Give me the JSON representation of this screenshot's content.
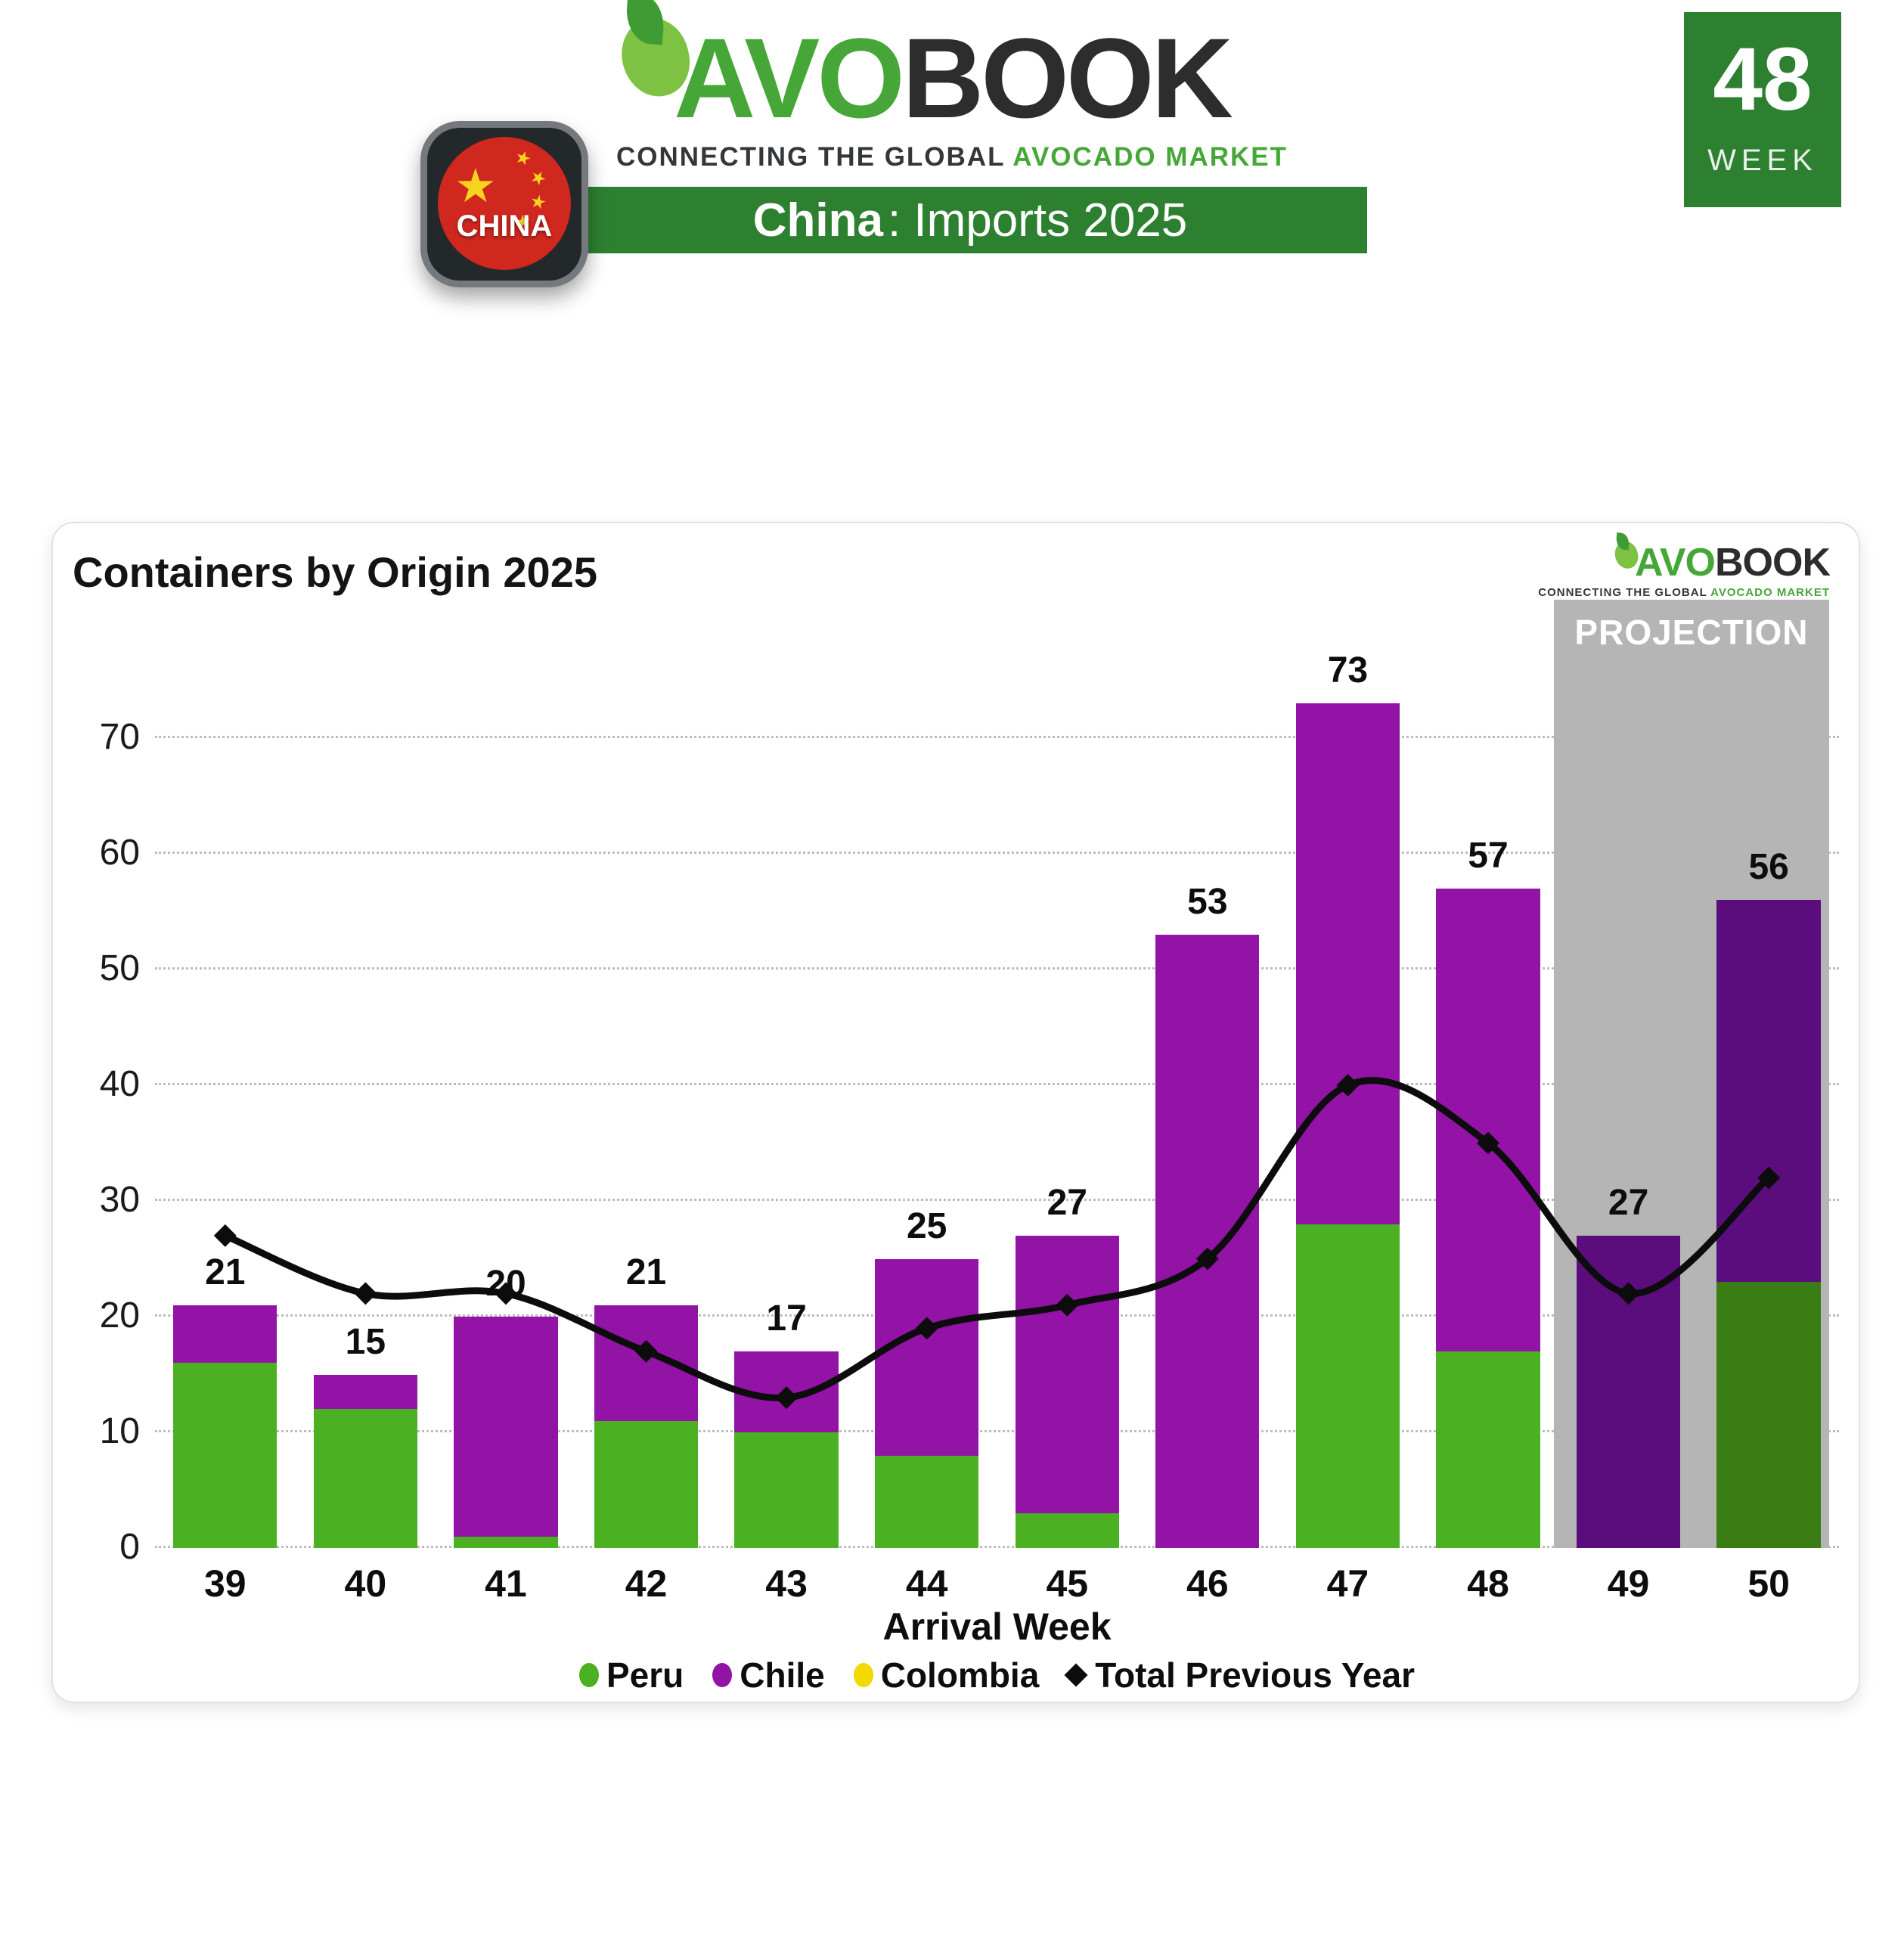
{
  "header": {
    "logo": {
      "avo": "AVO",
      "book": "BOOK",
      "tagline_dark": "CONNECTING THE GLOBAL",
      "tagline_green": "AVOCADO MARKET"
    },
    "banner": {
      "country": "China",
      "rest": ": Imports 2025"
    },
    "flag_badge": {
      "label": "CHINA"
    },
    "week_badge": {
      "number": "48",
      "label": "WEEK"
    }
  },
  "chart": {
    "title": "Containers by Origin 2025",
    "projection_label": "PROJECTION",
    "xlabel": "Arrival Week",
    "legend": [
      {
        "label": "Peru",
        "marker": "circle",
        "color": "#4cb122"
      },
      {
        "label": "Chile",
        "marker": "circle",
        "color": "#9213a6"
      },
      {
        "label": "Colombia",
        "marker": "circle",
        "color": "#f2d900"
      },
      {
        "label": "Total Previous Year",
        "marker": "diamond",
        "color": "#0c0c0c"
      }
    ]
  },
  "chart_data": {
    "type": "bar+line",
    "categories": [
      39,
      40,
      41,
      42,
      43,
      44,
      45,
      46,
      47,
      48,
      49,
      50
    ],
    "series": [
      {
        "name": "Peru",
        "type": "bar",
        "values": [
          16,
          12,
          1,
          11,
          10,
          8,
          3,
          0,
          28,
          17,
          0,
          23
        ]
      },
      {
        "name": "Chile",
        "type": "bar",
        "values": [
          5,
          3,
          19,
          10,
          7,
          17,
          24,
          53,
          45,
          40,
          27,
          33
        ]
      },
      {
        "name": "Colombia",
        "type": "bar",
        "values": [
          0,
          0,
          0,
          0,
          0,
          0,
          0,
          0,
          0,
          0,
          0,
          0
        ]
      },
      {
        "name": "Total Previous Year",
        "type": "line",
        "values": [
          27,
          22,
          22,
          17,
          13,
          19,
          21,
          25,
          40,
          35,
          22,
          32
        ]
      }
    ],
    "totals": [
      21,
      15,
      20,
      21,
      17,
      25,
      27,
      53,
      73,
      57,
      27,
      56
    ],
    "projection_weeks": [
      49,
      50
    ],
    "y_ticks": [
      0,
      10,
      20,
      30,
      40,
      50,
      60,
      70
    ],
    "ylim": [
      0,
      77
    ],
    "xlabel": "Arrival Week",
    "grid": "dotted-horizontal",
    "legend_position": "bottom"
  },
  "colors": {
    "peru": "#4cb122",
    "chile": "#9213a6",
    "colombia": "#f2d900",
    "peru_projection": "#3a7d14",
    "chile_projection": "#5c0d7d",
    "line": "#0c0c0c",
    "projection_band": "#b5b5b5",
    "banner_green": "#2e8031",
    "logo_green": "#46a738",
    "logo_dark": "#2d2d2d",
    "flag_red": "#d0271e",
    "flag_yellow": "#f5d31f"
  }
}
